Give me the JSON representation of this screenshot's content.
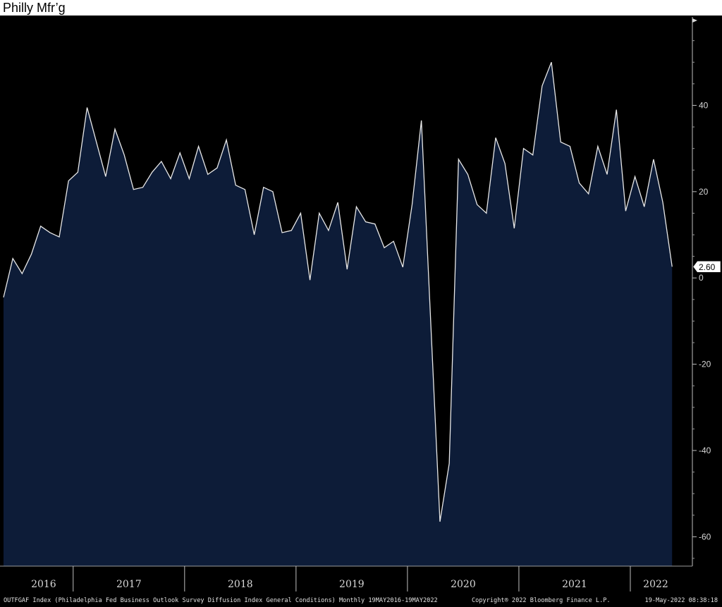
{
  "page_title": "Philly Mfr’g",
  "footer": {
    "description": "OUTFGAF Index (Philadelphia Fed Business Outlook Survey Diffusion Index General Conditions)  Monthly 19MAY2016-19MAY2022",
    "copyright": "Copyright® 2022 Bloomberg Finance L.P.",
    "timestamp": "19-May-2022 08:38:18"
  },
  "colors": {
    "background": "#000000",
    "fill": "#0d1c38",
    "line": "#e8e8e8",
    "axis_text": "#d8d8d8",
    "footer_text": "#e0e0e0"
  },
  "chart_data": {
    "type": "area",
    "title": "Philly Mfr’g",
    "frequency": "Monthly",
    "x_start": "2016-05",
    "x_end": "2022-05",
    "year_labels": [
      "2016",
      "2017",
      "2018",
      "2019",
      "2020",
      "2021",
      "2022"
    ],
    "values": [
      -4.5,
      4.5,
      1.0,
      5.5,
      12.0,
      10.5,
      9.5,
      22.5,
      24.5,
      39.5,
      31.5,
      23.5,
      34.5,
      28.5,
      20.5,
      21.0,
      24.5,
      27.0,
      23.0,
      29.0,
      23.0,
      30.5,
      24.0,
      25.5,
      32.0,
      21.5,
      20.5,
      10.0,
      21.0,
      20.0,
      10.5,
      11.0,
      15.0,
      -0.5,
      15.0,
      11.0,
      17.5,
      2.0,
      16.5,
      13.0,
      12.5,
      7.0,
      8.5,
      2.5,
      17.0,
      36.5,
      -10.0,
      -56.5,
      -43.0,
      27.5,
      24.0,
      17.0,
      15.0,
      32.5,
      26.5,
      11.5,
      30.0,
      28.5,
      44.5,
      50.0,
      31.5,
      30.5,
      22.0,
      19.5,
      30.5,
      24.0,
      39.0,
      15.5,
      23.5,
      16.5,
      27.5,
      17.5,
      2.6
    ],
    "last_value_label": "2.60",
    "y_ticks": [
      40,
      20,
      0,
      -20,
      -40,
      -60
    ],
    "y_tick_labels": [
      "40",
      "20",
      "0",
      "-20",
      "-40",
      "-60"
    ],
    "ylim": [
      -66.8,
      60.5
    ],
    "legend": "none",
    "grid": false
  }
}
